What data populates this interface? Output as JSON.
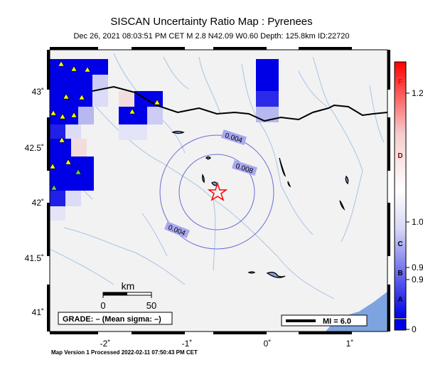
{
  "title": "SISCAN Uncertainty Ratio Map : Pyrenees",
  "subtitle": "Dec 26, 2021 08:03:51 PM CET   M 2.8   N42.09 W0.60   Depth: 125.8km   ID:22720",
  "footer": "Map Version 1 Processed 2022-02-11 07:50:43 PM CET",
  "lon_ticks": [
    "-2˚",
    "-1˚",
    "0˚",
    "1˚"
  ],
  "lat_ticks": [
    "43˚",
    "42.5˚",
    "42˚",
    "41.5˚",
    "41˚"
  ],
  "contour_labels": [
    "0.004",
    "0.008",
    "0.004"
  ],
  "scale_bar": {
    "unit": "km",
    "start": "0",
    "end": "50"
  },
  "grade_box": "GRADE: – (Mean sigma: –)",
  "mi_legend": "MI = 6.0",
  "colorbar": {
    "grades": [
      "F",
      "D",
      "C",
      "B",
      "A"
    ],
    "values": [
      "1.2",
      "1.0",
      "0.9",
      "0.9",
      "0"
    ]
  },
  "colors": {
    "land": "#f2f2f2",
    "water": "#7ea4e0",
    "river": "#a8c4e8",
    "station": "#ffff00",
    "epicenter": "#ff0000",
    "contour": "#6a6ad8"
  }
}
